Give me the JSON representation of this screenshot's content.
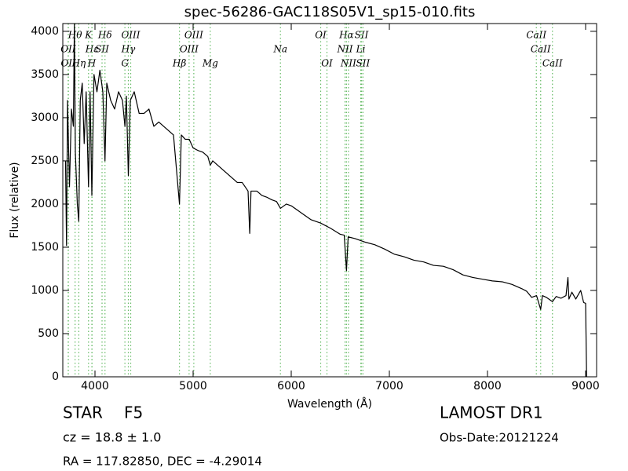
{
  "chart_data": {
    "type": "line",
    "title": "spec-56286-GAC118S05V1_sp15-010.fits",
    "x_label": "Wavelength (Å)",
    "y_label": "Flux (relative)",
    "xlim": [
      3672,
      9112
    ],
    "ylim": [
      0,
      4090
    ],
    "xticks": [
      4000,
      5000,
      6000,
      7000,
      8000,
      9000
    ],
    "yticks": [
      0,
      500,
      1000,
      1500,
      2000,
      2500,
      3000,
      3500,
      4000
    ],
    "grid": false,
    "color": "#000000",
    "line_color": "#66bb66",
    "x": [
      3700,
      3710,
      3720,
      3740,
      3760,
      3780,
      3790,
      3800,
      3820,
      3835,
      3850,
      3870,
      3890,
      3910,
      3934,
      3950,
      3968,
      3990,
      4020,
      4050,
      4080,
      4102,
      4120,
      4160,
      4200,
      4240,
      4280,
      4305,
      4320,
      4340,
      4360,
      4400,
      4450,
      4500,
      4550,
      4600,
      4650,
      4700,
      4750,
      4800,
      4861,
      4880,
      4920,
      4960,
      5000,
      5050,
      5100,
      5150,
      5175,
      5200,
      5250,
      5300,
      5350,
      5400,
      5450,
      5500,
      5560,
      5577,
      5590,
      5650,
      5700,
      5750,
      5800,
      5850,
      5890,
      5950,
      6000,
      6100,
      6200,
      6300,
      6400,
      6500,
      6540,
      6563,
      6580,
      6650,
      6750,
      6850,
      6950,
      7050,
      7150,
      7250,
      7350,
      7450,
      7550,
      7650,
      7750,
      7850,
      7950,
      8050,
      8150,
      8250,
      8350,
      8400,
      8450,
      8500,
      8542,
      8560,
      8600,
      8662,
      8700,
      8750,
      8800,
      8820,
      8830,
      8860,
      8900,
      8950,
      8980,
      9000,
      9010
    ],
    "values": [
      2500,
      1520,
      3200,
      2200,
      3100,
      2900,
      4090,
      2600,
      2000,
      1800,
      3200,
      3400,
      2700,
      3300,
      2200,
      3300,
      2100,
      3500,
      3300,
      3550,
      3300,
      2500,
      3400,
      3200,
      3100,
      3300,
      3200,
      2900,
      3250,
      2330,
      3200,
      3300,
      3050,
      3050,
      3100,
      2900,
      2950,
      2900,
      2850,
      2800,
      2000,
      2800,
      2750,
      2750,
      2650,
      2620,
      2600,
      2550,
      2450,
      2500,
      2450,
      2400,
      2350,
      2300,
      2250,
      2250,
      2150,
      1660,
      2150,
      2150,
      2100,
      2080,
      2050,
      2030,
      1950,
      2000,
      1980,
      1900,
      1820,
      1780,
      1720,
      1650,
      1640,
      1230,
      1620,
      1600,
      1560,
      1530,
      1480,
      1420,
      1390,
      1350,
      1330,
      1290,
      1280,
      1240,
      1180,
      1150,
      1130,
      1110,
      1100,
      1070,
      1020,
      990,
      920,
      940,
      780,
      940,
      920,
      870,
      930,
      910,
      940,
      1150,
      900,
      980,
      900,
      1000,
      860,
      850,
      0
    ],
    "spectral_lines": [
      [
        {
          "label": "Hθ",
          "x": 3797
        },
        {
          "label": "K",
          "x": 3934
        },
        {
          "label": "Hδ",
          "x": 4102
        },
        {
          "label": "OIII",
          "x": 4364
        },
        {
          "label": "OIII",
          "x": 5007
        },
        {
          "label": "OI",
          "x": 6300
        },
        {
          "label": "Hα",
          "x": 6563
        },
        {
          "label": "SII",
          "x": 6716
        },
        {
          "label": "CaII",
          "x": 8498
        }
      ],
      [
        {
          "label": "OII",
          "x": 3727
        },
        {
          "label": "Hε",
          "x": 3970
        },
        {
          "label": "SII",
          "x": 4072
        },
        {
          "label": "Hγ",
          "x": 4340
        },
        {
          "label": "OIII",
          "x": 4959
        },
        {
          "label": "Na",
          "x": 5890
        },
        {
          "label": "NII",
          "x": 6548
        },
        {
          "label": "Li",
          "x": 6708
        },
        {
          "label": "CaII",
          "x": 8542
        }
      ],
      [
        {
          "label": "OII",
          "x": 3729
        },
        {
          "label": "Hη",
          "x": 3835
        },
        {
          "label": "H",
          "x": 3968
        },
        {
          "label": "G",
          "x": 4305
        },
        {
          "label": "Hβ",
          "x": 4861
        },
        {
          "label": "Mg",
          "x": 5175
        },
        {
          "label": "OI",
          "x": 6364
        },
        {
          "label": "NII",
          "x": 6583
        },
        {
          "label": "SII",
          "x": 6731
        },
        {
          "label": "CaII",
          "x": 8662
        }
      ]
    ],
    "annotations": [
      "STAR",
      "F5",
      "LAMOST DR1",
      "cz = 18.8 ± 1.0",
      "Obs-Date:20121224",
      "RA = 117.82850, DEC = -4.29014"
    ]
  }
}
